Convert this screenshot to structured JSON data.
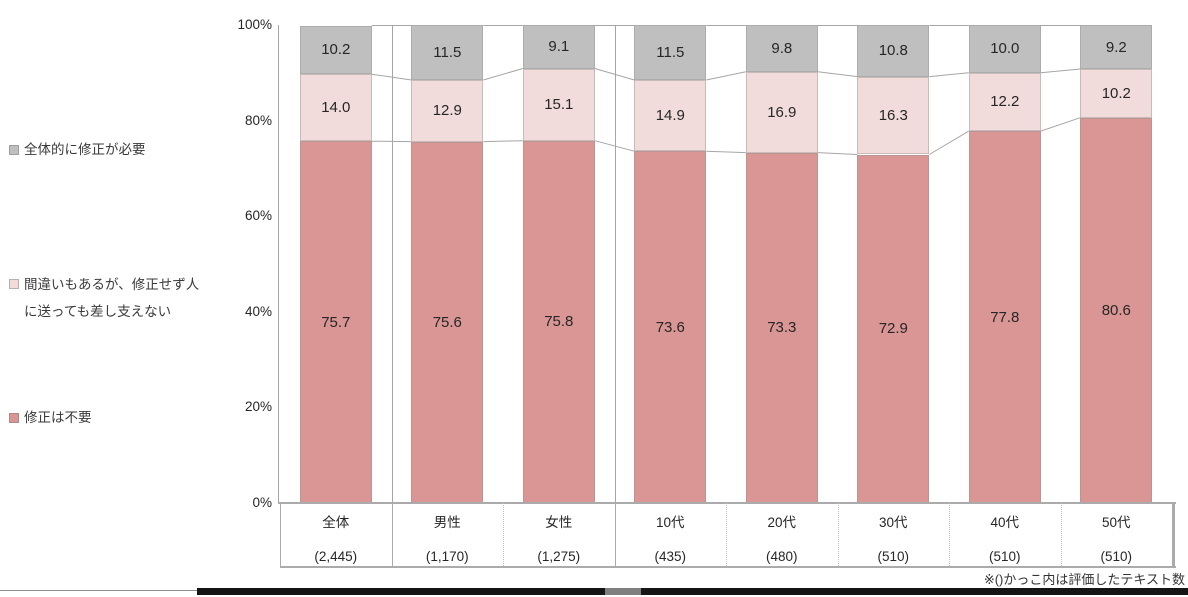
{
  "legend": {
    "items": [
      {
        "lines": [
          "全体的に修正が必要"
        ],
        "color": "#BFBFBF"
      },
      {
        "lines": [
          "間違いもあるが、修正せず人",
          "に送っても差し支えない"
        ],
        "color": "#F2DCDB"
      },
      {
        "lines": [
          "修正は不要"
        ],
        "color": "#D99694"
      }
    ]
  },
  "chart_data": {
    "type": "bar",
    "stacked": true,
    "percent": true,
    "title": "",
    "xlabel": "",
    "ylabel": "",
    "ylim": [
      0,
      100
    ],
    "grid": false,
    "legend_position": "left",
    "categories": [
      {
        "label": "全体",
        "count": "(2,445)"
      },
      {
        "label": "男性",
        "count": "(1,170)"
      },
      {
        "label": "女性",
        "count": "(1,275)"
      },
      {
        "label": "10代",
        "count": "(435)"
      },
      {
        "label": "20代",
        "count": "(480)"
      },
      {
        "label": "30代",
        "count": "(510)"
      },
      {
        "label": "40代",
        "count": "(510)"
      },
      {
        "label": "50代",
        "count": "(510)"
      }
    ],
    "series": [
      {
        "name": "修正は不要",
        "color": "#D99694",
        "values": [
          75.7,
          75.6,
          75.8,
          73.6,
          73.3,
          72.9,
          77.8,
          80.6
        ],
        "value_labels": [
          "75.7",
          "75.6",
          "75.8",
          "73.6",
          "73.3",
          "72.9",
          "77.8",
          "80.6"
        ]
      },
      {
        "name": "間違いもあるが、修正せず人に送っても差し支えない",
        "color": "#F2DCDB",
        "values": [
          14.0,
          12.9,
          15.1,
          14.9,
          16.9,
          16.3,
          12.2,
          10.2
        ],
        "value_labels": [
          "14.0",
          "12.9",
          "15.1",
          "14.9",
          "16.9",
          "16.3",
          "12.2",
          "10.2"
        ]
      },
      {
        "name": "全体的に修正が必要",
        "color": "#BFBFBF",
        "values": [
          10.2,
          11.5,
          9.1,
          11.5,
          9.8,
          10.8,
          10.0,
          9.2
        ],
        "value_labels": [
          "10.2",
          "11.5",
          "9.1",
          "11.5",
          "9.8",
          "10.8",
          "10.0",
          "9.2"
        ]
      }
    ],
    "y_ticks": [
      {
        "label": "100%",
        "value": 100
      },
      {
        "label": "80%",
        "value": 80
      },
      {
        "label": "60%",
        "value": 60
      },
      {
        "label": "40%",
        "value": 40
      },
      {
        "label": "20%",
        "value": 20
      },
      {
        "label": "0%",
        "value": 0
      }
    ],
    "group_separators_after": [
      0,
      2
    ],
    "line_color": "#A6A6A6",
    "axis_border_color": "#ABABAB",
    "note": "※()かっこ内は評価したテキスト数"
  }
}
